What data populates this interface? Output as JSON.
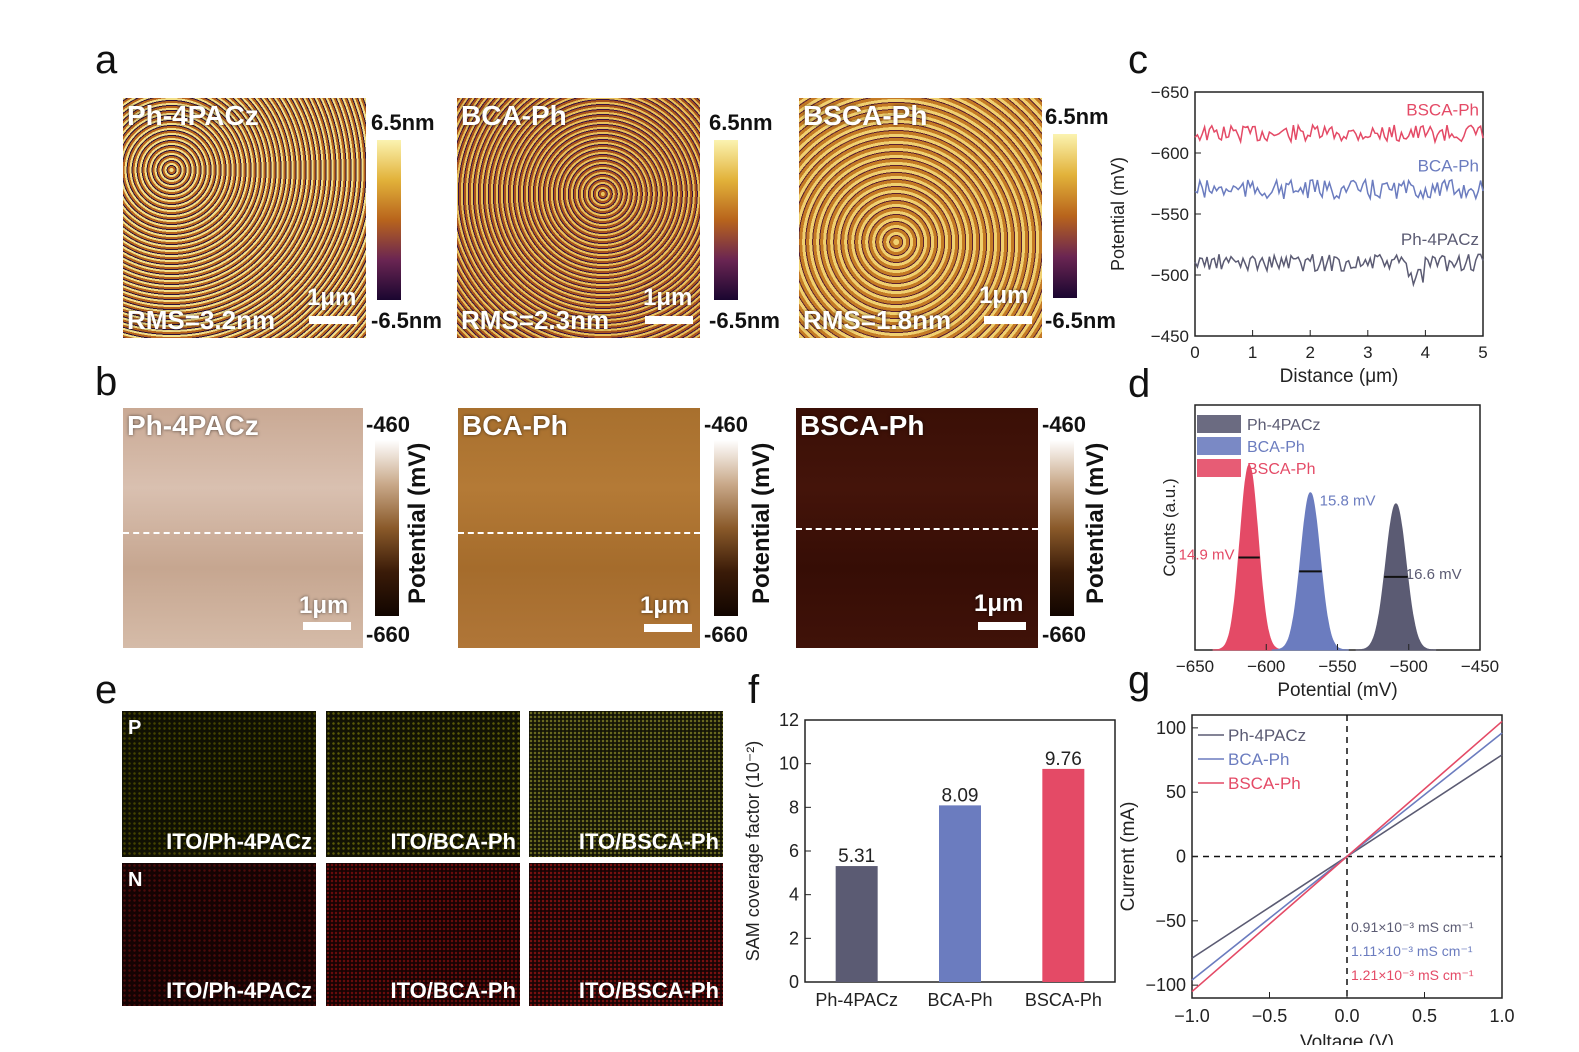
{
  "panel_letters": {
    "a": "a",
    "b": "b",
    "c": "c",
    "d": "d",
    "e": "e",
    "f": "f",
    "g": "g"
  },
  "colors": {
    "ph4pacz": "#5b5b73",
    "bcaph": "#6b7cbf",
    "bscaph": "#e44a66",
    "afm_dark": "#2b0f3a",
    "afm_mid": "#b8641c",
    "afm_light": "#f3e08a"
  },
  "afm": {
    "colorbar_top": "6.5nm",
    "colorbar_bottom": "-6.5nm",
    "scale": "1μm",
    "panels": [
      {
        "title": "Ph-4PACz",
        "rms": "RMS=3.2nm"
      },
      {
        "title": "BCA-Ph",
        "rms": "RMS=2.3nm"
      },
      {
        "title": "BSCA-Ph",
        "rms": "RMS=1.8nm"
      }
    ]
  },
  "kpfm": {
    "colorbar_top": "-460",
    "colorbar_bottom": "-660",
    "colorbar_label": "Potential (mV)",
    "scale": "1μm",
    "panels": [
      {
        "title": "Ph-4PACz"
      },
      {
        "title": "BCA-Ph"
      },
      {
        "title": "BSCA-Ph"
      }
    ]
  },
  "eds": {
    "row_labels": [
      "P",
      "N"
    ],
    "samples": [
      "ITO/Ph-4PACz",
      "ITO/BCA-Ph",
      "ITO/BSCA-Ph"
    ]
  },
  "chart_data": [
    {
      "id": "c",
      "type": "line",
      "xlabel": "Distance (μm)",
      "ylabel": "Potential (mV)",
      "xlim": [
        0,
        5
      ],
      "ylim": [
        -450,
        -650
      ],
      "xticks": [
        "0",
        "1",
        "2",
        "3",
        "4",
        "5"
      ],
      "yticks": [
        "−650",
        "−600",
        "−550",
        "−500",
        "−450"
      ],
      "series": [
        {
          "name": "BSCA-Ph",
          "mean": -616,
          "noise": 7
        },
        {
          "name": "BCA-Ph",
          "mean": -570,
          "noise": 8
        },
        {
          "name": "Ph-4PACz",
          "mean": -510,
          "noise": 7
        }
      ]
    },
    {
      "id": "d",
      "type": "area",
      "xlabel": "Potential (mV)",
      "ylabel": "Counts (a.u.)",
      "xlim": [
        -650,
        -450
      ],
      "xticks": [
        "−650",
        "−600",
        "−550",
        "−500",
        "−450"
      ],
      "legend": [
        "Ph-4PACz",
        "BCA-Ph",
        "BSCA-Ph"
      ],
      "series": [
        {
          "name": "BSCA-Ph",
          "center": -612,
          "fwhm": 14.9,
          "height": 1.0,
          "label": "14.9 mV"
        },
        {
          "name": "BCA-Ph",
          "center": -569,
          "fwhm": 15.8,
          "height": 0.85,
          "label": "15.8 mV"
        },
        {
          "name": "Ph-4PACz",
          "center": -509,
          "fwhm": 16.6,
          "height": 0.79,
          "label": "16.6 mV"
        }
      ]
    },
    {
      "id": "f",
      "type": "bar",
      "ylabel": "SAM coverage factor (10⁻²)",
      "categories": [
        "Ph-4PACz",
        "BCA-Ph",
        "BSCA-Ph"
      ],
      "values": [
        5.31,
        8.09,
        9.76
      ],
      "value_labels": [
        "5.31",
        "8.09",
        "9.76"
      ],
      "ylim": [
        0,
        12
      ],
      "yticks": [
        "0",
        "2",
        "4",
        "6",
        "8",
        "10",
        "12"
      ]
    },
    {
      "id": "g",
      "type": "line",
      "xlabel": "Voltage (V)",
      "ylabel": "Current (mA)",
      "xlim": [
        -1.0,
        1.0
      ],
      "ylim": [
        -110,
        110
      ],
      "xticks": [
        "−1.0",
        "−0.5",
        "0.0",
        "0.5",
        "1.0"
      ],
      "yticks": [
        "100",
        "50",
        "0",
        "−50",
        "−100"
      ],
      "series": [
        {
          "name": "Ph-4PACz",
          "slope": 79,
          "annotation": "0.91×10⁻³ mS cm⁻¹"
        },
        {
          "name": "BCA-Ph",
          "slope": 96,
          "annotation": "1.11×10⁻³ mS cm⁻¹"
        },
        {
          "name": "BSCA-Ph",
          "slope": 105,
          "annotation": "1.21×10⁻³ mS cm⁻¹"
        }
      ]
    }
  ]
}
